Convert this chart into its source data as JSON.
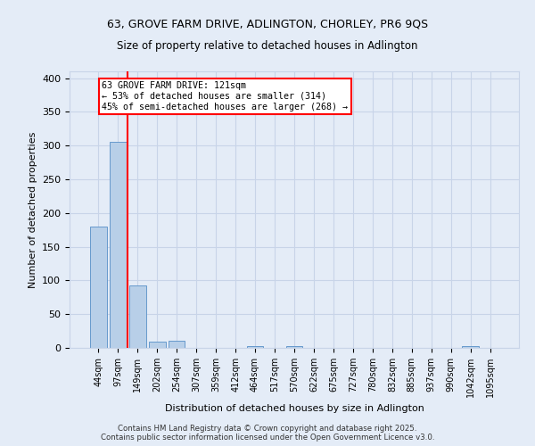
{
  "title1": "63, GROVE FARM DRIVE, ADLINGTON, CHORLEY, PR6 9QS",
  "title2": "Size of property relative to detached houses in Adlington",
  "xlabel": "Distribution of detached houses by size in Adlington",
  "ylabel": "Number of detached properties",
  "categories": [
    "44sqm",
    "97sqm",
    "149sqm",
    "202sqm",
    "254sqm",
    "307sqm",
    "359sqm",
    "412sqm",
    "464sqm",
    "517sqm",
    "570sqm",
    "622sqm",
    "675sqm",
    "727sqm",
    "780sqm",
    "832sqm",
    "885sqm",
    "937sqm",
    "990sqm",
    "1042sqm",
    "1095sqm"
  ],
  "values": [
    180,
    305,
    93,
    9,
    10,
    0,
    0,
    0,
    2,
    0,
    3,
    0,
    0,
    0,
    0,
    0,
    0,
    0,
    0,
    2,
    0
  ],
  "bar_color": "#b8cfe8",
  "bar_edge_color": "#6699cc",
  "grid_color": "#c8d4e8",
  "background_color": "#e4ecf7",
  "vline_x": 1.5,
  "vline_color": "red",
  "annotation_text": "63 GROVE FARM DRIVE: 121sqm\n← 53% of detached houses are smaller (314)\n45% of semi-detached houses are larger (268) →",
  "annotation_box_color": "white",
  "annotation_box_edge_color": "red",
  "ylim": [
    0,
    410
  ],
  "yticks": [
    0,
    50,
    100,
    150,
    200,
    250,
    300,
    350,
    400
  ],
  "footer_text": "Contains HM Land Registry data © Crown copyright and database right 2025.\nContains public sector information licensed under the Open Government Licence v3.0."
}
